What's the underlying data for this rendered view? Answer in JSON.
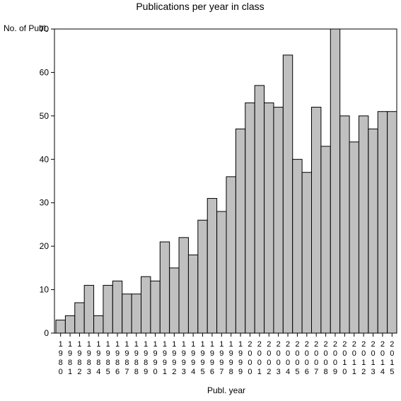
{
  "chart_data": {
    "type": "bar",
    "title": "Publications per year in class",
    "xlabel": "Publ. year",
    "ylabel": "No. of Publ.",
    "ylim": [
      0,
      70
    ],
    "yticks": [
      0,
      10,
      20,
      30,
      40,
      50,
      60,
      70
    ],
    "grid": false,
    "legend": "none",
    "bar_color": "#c0c0c0",
    "categories": [
      "1980",
      "1981",
      "1982",
      "1983",
      "1984",
      "1985",
      "1986",
      "1987",
      "1988",
      "1989",
      "1990",
      "1991",
      "1992",
      "1993",
      "1994",
      "1995",
      "1996",
      "1997",
      "1998",
      "1999",
      "2000",
      "2001",
      "2002",
      "2003",
      "2004",
      "2005",
      "2006",
      "2007",
      "2008",
      "2009",
      "2010",
      "2011",
      "2012",
      "2013",
      "2014",
      "2015"
    ],
    "values": [
      3,
      4,
      7,
      11,
      4,
      11,
      12,
      9,
      9,
      13,
      12,
      21,
      15,
      22,
      18,
      26,
      31,
      28,
      36,
      47,
      53,
      57,
      53,
      52,
      64,
      40,
      37,
      52,
      43,
      70,
      50,
      44,
      50,
      47,
      51,
      51
    ]
  }
}
